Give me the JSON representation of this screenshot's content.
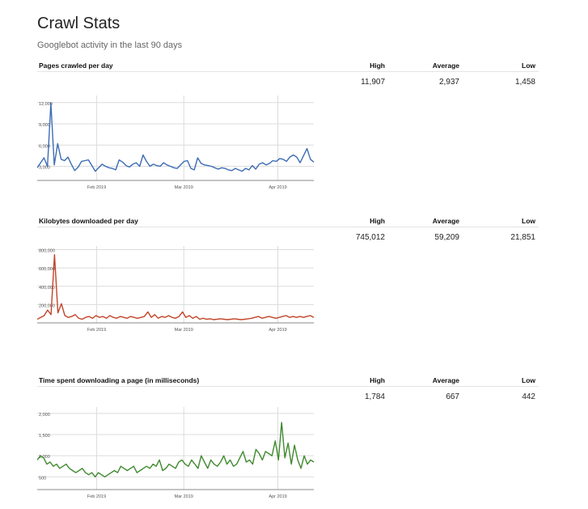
{
  "page": {
    "title": "Crawl Stats",
    "subtitle": "Googlebot activity in the last 90 days"
  },
  "sections": [
    {
      "title": "Pages crawled per day",
      "headers": [
        "High",
        "Average",
        "Low"
      ],
      "stats": [
        "11,907",
        "2,937",
        "1,458"
      ]
    },
    {
      "title": "Kilobytes downloaded per day",
      "headers": [
        "High",
        "Average",
        "Low"
      ],
      "stats": [
        "745,012",
        "59,209",
        "21,851"
      ]
    },
    {
      "title": "Time spent downloading a page (in milliseconds)",
      "headers": [
        "High",
        "Average",
        "Low"
      ],
      "stats": [
        "1,784",
        "667",
        "442"
      ]
    }
  ],
  "chart_data": [
    {
      "type": "line",
      "color": "#3d6cb5",
      "yticks": [
        3000,
        6000,
        9000,
        12000
      ],
      "ytick_labels": [
        "3,000",
        "6,000",
        "9,000",
        "12,000"
      ],
      "xticks": [
        "Feb 2019",
        "Mar 2019",
        "Apr 2019"
      ],
      "ylim": [
        1000,
        13000
      ],
      "values": [
        2800,
        3500,
        4200,
        3000,
        11907,
        3200,
        6200,
        4000,
        3800,
        4300,
        3300,
        2400,
        2900,
        3700,
        3800,
        3900,
        3100,
        2300,
        2800,
        3300,
        3000,
        2800,
        2700,
        2500,
        3900,
        3600,
        3100,
        2900,
        3300,
        3500,
        3000,
        4600,
        3700,
        3000,
        3300,
        3100,
        3000,
        3500,
        3200,
        3000,
        2800,
        2700,
        3200,
        3700,
        3800,
        2700,
        2500,
        4200,
        3400,
        3200,
        3100,
        3000,
        2800,
        2600,
        2800,
        2700,
        2500,
        2400,
        2700,
        2500,
        2300,
        2700,
        2500,
        3100,
        2600,
        3300,
        3500,
        3200,
        3400,
        3800,
        3700,
        4100,
        4000,
        3700,
        4300,
        4600,
        4300,
        3500,
        4500,
        5500,
        4000,
        3600
      ]
    },
    {
      "type": "line",
      "color": "#c1452a",
      "yticks": [
        200000,
        400000,
        600000,
        800000
      ],
      "ytick_labels": [
        "200,000",
        "400,000",
        "600,000",
        "800,000"
      ],
      "xticks": [
        "Feb 2019",
        "Mar 2019",
        "Apr 2019"
      ],
      "ylim": [
        0,
        840000
      ],
      "values": [
        40000,
        60000,
        80000,
        140000,
        90000,
        745012,
        110000,
        210000,
        80000,
        60000,
        70000,
        90000,
        50000,
        40000,
        60000,
        70000,
        50000,
        80000,
        60000,
        70000,
        50000,
        80000,
        60000,
        50000,
        70000,
        60000,
        50000,
        70000,
        60000,
        50000,
        60000,
        70000,
        120000,
        60000,
        90000,
        50000,
        70000,
        60000,
        80000,
        60000,
        50000,
        70000,
        120000,
        60000,
        80000,
        50000,
        70000,
        40000,
        50000,
        40000,
        45000,
        35000,
        40000,
        45000,
        40000,
        35000,
        40000,
        45000,
        40000,
        35000,
        40000,
        45000,
        50000,
        60000,
        70000,
        50000,
        60000,
        70000,
        60000,
        50000,
        60000,
        70000,
        80000,
        60000,
        70000,
        60000,
        70000,
        60000,
        70000,
        80000,
        60000
      ]
    },
    {
      "type": "line",
      "color": "#3f8a2f",
      "yticks": [
        500,
        1000,
        1500,
        2000
      ],
      "ytick_labels": [
        "500",
        "1,000",
        "1,500",
        "2,000"
      ],
      "xticks": [
        "Feb 2019",
        "Mar 2019",
        "Apr 2019"
      ],
      "ylim": [
        200,
        2150
      ],
      "values": [
        900,
        1000,
        950,
        800,
        850,
        750,
        800,
        700,
        750,
        800,
        700,
        650,
        600,
        650,
        700,
        600,
        550,
        600,
        500,
        600,
        550,
        500,
        550,
        600,
        650,
        600,
        750,
        700,
        650,
        700,
        750,
        600,
        650,
        700,
        750,
        700,
        800,
        750,
        900,
        650,
        700,
        800,
        750,
        700,
        850,
        900,
        800,
        750,
        900,
        800,
        700,
        1000,
        850,
        700,
        900,
        800,
        750,
        850,
        1000,
        800,
        900,
        750,
        800,
        950,
        1100,
        850,
        900,
        800,
        1150,
        1050,
        900,
        1100,
        1050,
        1000,
        1350,
        900,
        1784,
        950,
        1300,
        800,
        1250,
        900,
        700,
        1000,
        800,
        900,
        850
      ]
    }
  ]
}
